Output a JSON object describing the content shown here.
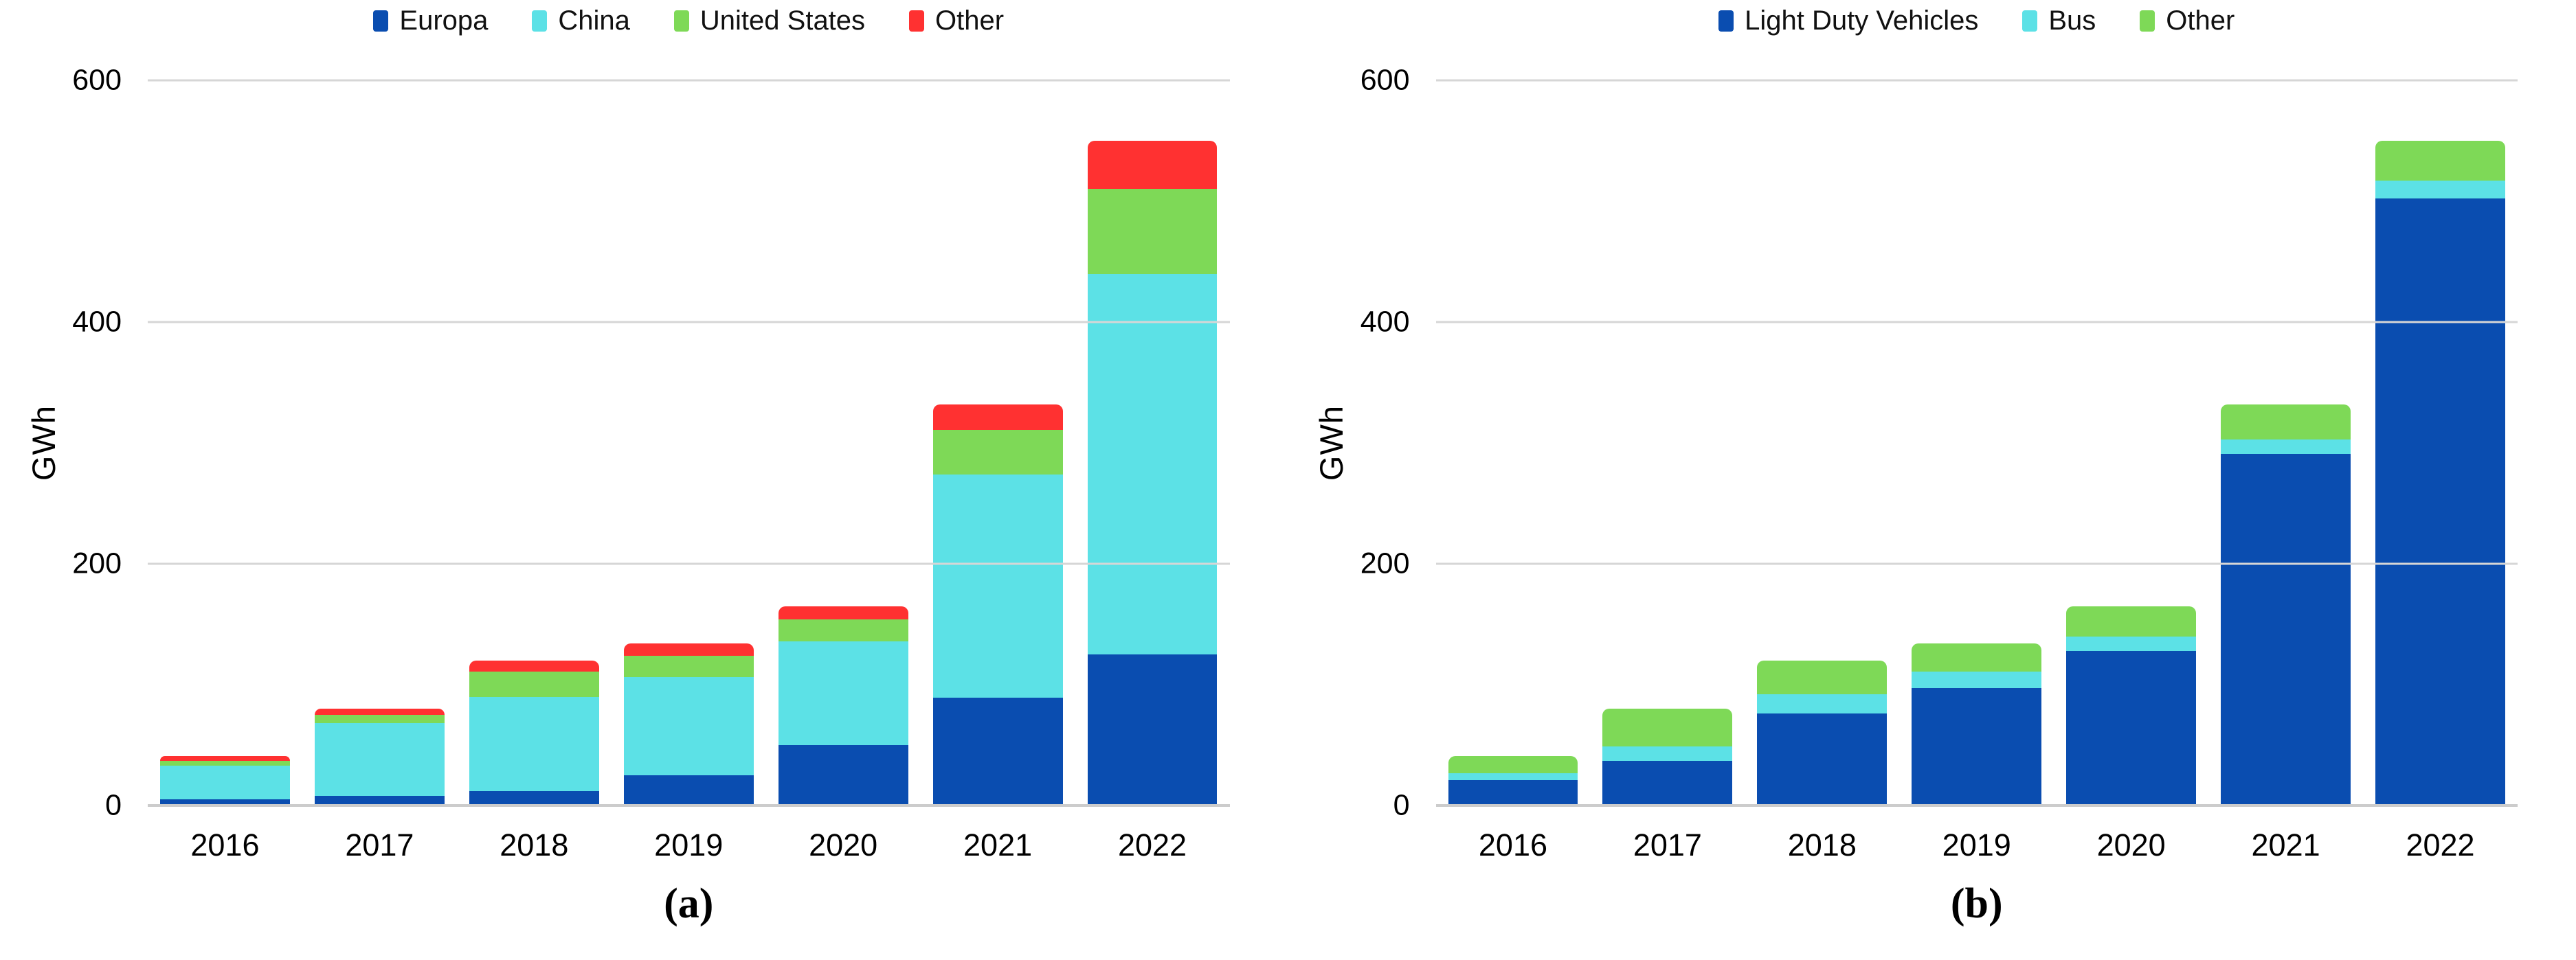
{
  "figure": {
    "background": "#ffffff",
    "panels": [
      {
        "caption": "(a)",
        "ylabel": "GWh"
      },
      {
        "caption": "(b)",
        "ylabel": "GWh"
      }
    ],
    "colors": {
      "blue": "#0A4DB0",
      "cyan": "#5CE1E6",
      "green": "#7ED957",
      "red": "#FF3131",
      "gridline": "#D6D6D6",
      "axis_line": "#CCCCCC",
      "text": "#000000"
    }
  },
  "chart_data": [
    {
      "type": "bar",
      "stacked": true,
      "title": "",
      "xlabel": "",
      "ylabel": "GWh",
      "ylim": [
        0,
        600
      ],
      "yticks": [
        0,
        200,
        400,
        600
      ],
      "grid": "horizontal",
      "legend_position": "top",
      "categories": [
        "2016",
        "2017",
        "2018",
        "2019",
        "2020",
        "2021",
        "2022"
      ],
      "series": [
        {
          "name": "Europa",
          "color": "#0A4DB0",
          "values": [
            5,
            8,
            12,
            25,
            50,
            89,
            125
          ]
        },
        {
          "name": "China",
          "color": "#5CE1E6",
          "values": [
            28,
            60,
            78,
            81,
            86,
            185,
            315
          ]
        },
        {
          "name": "United States",
          "color": "#7ED957",
          "values": [
            4,
            7,
            21,
            18,
            18,
            37,
            70
          ]
        },
        {
          "name": "Other",
          "color": "#FF3131",
          "values": [
            4,
            5,
            9,
            10,
            11,
            21,
            40
          ]
        }
      ]
    },
    {
      "type": "bar",
      "stacked": true,
      "title": "",
      "xlabel": "",
      "ylabel": "GWh",
      "ylim": [
        0,
        600
      ],
      "yticks": [
        0,
        200,
        400,
        600
      ],
      "grid": "horizontal",
      "legend_position": "top",
      "categories": [
        "2016",
        "2017",
        "2018",
        "2019",
        "2020",
        "2021",
        "2022"
      ],
      "series": [
        {
          "name": "Light Duty Vehicles",
          "color": "#0A4DB0",
          "values": [
            21,
            37,
            76,
            97,
            128,
            291,
            502
          ]
        },
        {
          "name": "Bus",
          "color": "#5CE1E6",
          "values": [
            6,
            12,
            16,
            14,
            12,
            12,
            15
          ]
        },
        {
          "name": "Other",
          "color": "#7ED957",
          "values": [
            14,
            31,
            28,
            23,
            25,
            29,
            33
          ]
        }
      ]
    }
  ]
}
